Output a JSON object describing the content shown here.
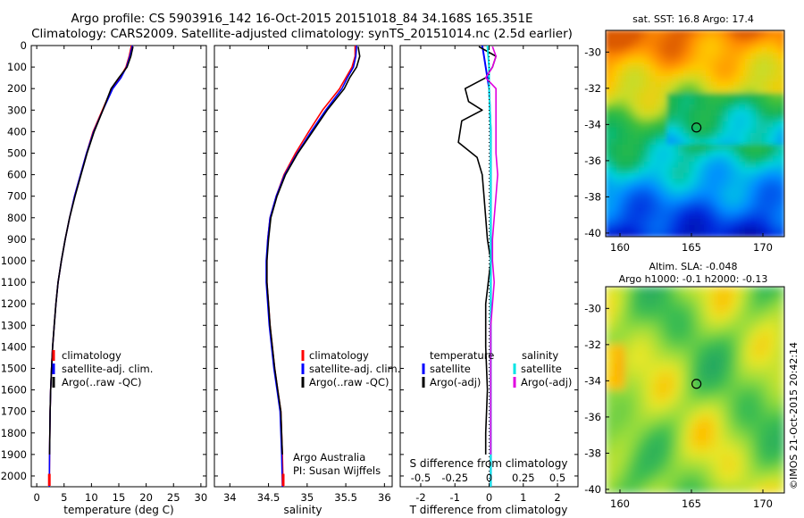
{
  "title_line1": "Argo profile: CS 5903916_142 16-Oct-2015 20151018_84 34.168S 165.351E",
  "title_line2": "Climatology: CARS2009. Satellite-adjusted climatology: synTS_20151014.nc (2.5d earlier)",
  "colors": {
    "climatology": "#ff0000",
    "satellite_adj": "#0000ff",
    "argo": "#000000",
    "argo_adj_salinity": "#e000e0",
    "satellite_salinity": "#00e5e5"
  },
  "chart_data": [
    {
      "type": "line",
      "name": "temperature-profile",
      "xlabel": "temperature (deg C)",
      "ylabel": "",
      "xlim": [
        -1,
        31
      ],
      "ylim": [
        2050,
        0
      ],
      "x_ticks": [
        0,
        5,
        10,
        15,
        20,
        25,
        30
      ],
      "y_ticks": [
        0,
        100,
        200,
        300,
        400,
        500,
        600,
        700,
        800,
        900,
        1000,
        1100,
        1200,
        1300,
        1400,
        1500,
        1600,
        1700,
        1800,
        1900,
        2000
      ],
      "legend": [
        "climatology",
        "satellite-adj. clim.",
        "Argo(..raw -QC)"
      ],
      "series": [
        {
          "name": "climatology",
          "x": [
            17.3,
            16.9,
            16.3,
            15.2,
            13.7,
            12.0,
            10.3,
            9.1,
            8.0,
            6.9,
            6.0,
            5.2,
            4.5,
            3.9,
            3.5,
            3.2,
            2.9,
            2.7,
            2.55,
            2.45,
            2.35,
            2.3
          ],
          "y": [
            0,
            50,
            100,
            150,
            200,
            300,
            400,
            500,
            600,
            700,
            800,
            900,
            1000,
            1100,
            1200,
            1300,
            1400,
            1500,
            1600,
            1700,
            1900,
            2050
          ]
        },
        {
          "name": "satellite-adj. clim.",
          "x": [
            17.5,
            17.0,
            16.4,
            15.4,
            13.9,
            12.1,
            10.4,
            9.1,
            8.0,
            6.9,
            6.0,
            5.2,
            4.5,
            3.9,
            3.5,
            3.2,
            2.9,
            2.7,
            2.55,
            2.45,
            2.35,
            2.3
          ],
          "y": [
            0,
            50,
            100,
            150,
            200,
            300,
            400,
            500,
            600,
            700,
            800,
            900,
            1000,
            1100,
            1200,
            1300,
            1400,
            1500,
            1600,
            1700,
            1900,
            2050
          ]
        },
        {
          "name": "Argo",
          "x": [
            17.6,
            17.2,
            16.5,
            15.0,
            13.6,
            12.1,
            10.5,
            9.2,
            8.1,
            7.0,
            6.0,
            5.2,
            4.5,
            3.9,
            3.5,
            3.2,
            2.9,
            2.7,
            2.55,
            2.45,
            2.35
          ],
          "y": [
            5,
            50,
            100,
            150,
            200,
            300,
            400,
            500,
            600,
            700,
            800,
            900,
            1000,
            1100,
            1200,
            1300,
            1400,
            1500,
            1600,
            1700,
            1900
          ]
        }
      ]
    },
    {
      "type": "line",
      "name": "salinity-profile",
      "xlabel": "salinity",
      "ylabel": "",
      "xlim": [
        33.8,
        36.1
      ],
      "ylim": [
        2050,
        0
      ],
      "x_ticks": [
        34,
        34.5,
        35,
        35.5,
        36
      ],
      "x_tick_labels": [
        "34",
        "34.5",
        "35",
        "35.5",
        "36"
      ],
      "legend": [
        "climatology",
        "satellite-adj. clim.",
        "Argo(..raw -QC)"
      ],
      "annotation": [
        "Argo Australia",
        "PI: Susan Wijffels"
      ],
      "series": [
        {
          "name": "climatology",
          "x": [
            35.62,
            35.62,
            35.58,
            35.5,
            35.42,
            35.2,
            35.02,
            34.85,
            34.7,
            34.6,
            34.52,
            34.49,
            34.48,
            34.48,
            34.5,
            34.52,
            34.55,
            34.58,
            34.62,
            34.66,
            34.68,
            34.69
          ],
          "y": [
            0,
            50,
            100,
            150,
            200,
            300,
            400,
            500,
            600,
            700,
            800,
            900,
            1000,
            1100,
            1200,
            1300,
            1400,
            1500,
            1600,
            1700,
            1900,
            2050
          ]
        },
        {
          "name": "satellite-adj. clim.",
          "x": [
            35.64,
            35.63,
            35.6,
            35.52,
            35.45,
            35.24,
            35.05,
            34.87,
            34.71,
            34.6,
            34.52,
            34.49,
            34.47,
            34.47,
            34.49,
            34.51,
            34.54,
            34.57,
            34.61,
            34.65,
            34.67,
            34.68
          ],
          "y": [
            0,
            50,
            100,
            150,
            200,
            300,
            400,
            500,
            600,
            700,
            800,
            900,
            1000,
            1100,
            1200,
            1300,
            1400,
            1500,
            1600,
            1700,
            1900,
            2050
          ]
        },
        {
          "name": "Argo",
          "x": [
            35.66,
            35.68,
            35.64,
            35.55,
            35.48,
            35.26,
            35.07,
            34.88,
            34.72,
            34.61,
            34.53,
            34.5,
            34.48,
            34.48,
            34.5,
            34.52,
            34.55,
            34.58,
            34.62,
            34.66,
            34.68
          ],
          "y": [
            5,
            50,
            100,
            150,
            200,
            300,
            400,
            500,
            600,
            700,
            800,
            900,
            1000,
            1100,
            1200,
            1300,
            1400,
            1500,
            1600,
            1700,
            1900
          ]
        }
      ]
    },
    {
      "type": "line",
      "name": "difference-profile",
      "xlabel": "T difference from climatology",
      "xlabel_top": "S difference from climatology",
      "xlim": [
        -2.6,
        2.6
      ],
      "ylim": [
        2050,
        0
      ],
      "t_ticks": [
        -2,
        -1,
        0,
        1,
        2
      ],
      "t_tick_labels": [
        "-2",
        "-1",
        "0",
        "1",
        "2"
      ],
      "s_tick_labels": [
        "-0.5",
        "-0.25",
        "0",
        "0.25",
        "0.5"
      ],
      "s_ticks_on_t_axis": [
        -2,
        -1,
        0,
        1,
        2
      ],
      "legend_temperature_title": "temperature",
      "legend_salinity_title": "salinity",
      "legend_temperature": [
        "satellite",
        "Argo(-adj)"
      ],
      "legend_salinity": [
        "satellite",
        "Argo(-adj)"
      ],
      "series": [
        {
          "name": "temperature satellite",
          "x": [
            -0.2,
            -0.15,
            -0.1,
            0.0,
            0.05,
            0.05,
            0.05,
            0.05,
            0.05,
            0.05,
            0.05
          ],
          "y": [
            0,
            50,
            100,
            200,
            400,
            600,
            800,
            1000,
            1400,
            1800,
            2050
          ]
        },
        {
          "name": "temperature Argo",
          "x": [
            -0.3,
            0.2,
            0.1,
            -0.1,
            -0.7,
            -0.6,
            -0.2,
            -0.8,
            -0.9,
            -0.35,
            -0.2,
            -0.15,
            -0.1,
            -0.05,
            0.05,
            -0.1,
            -0.1,
            -0.05,
            -0.1,
            -0.1
          ],
          "y": [
            5,
            50,
            100,
            150,
            200,
            260,
            300,
            350,
            450,
            520,
            600,
            700,
            800,
            900,
            1000,
            1200,
            1400,
            1600,
            1800,
            1900
          ]
        },
        {
          "name": "salinity satellite",
          "x": [
            -0.05,
            0.0,
            0.0,
            0.05,
            0.05,
            0.05,
            0.05,
            0.05,
            0.05,
            0.05
          ],
          "y": [
            0,
            100,
            200,
            400,
            600,
            800,
            1000,
            1400,
            1800,
            2050
          ]
        },
        {
          "name": "salinity Argo",
          "x": [
            0.1,
            0.2,
            0.1,
            -0.1,
            0.2,
            0.2,
            0.2,
            0.2,
            0.25,
            0.2,
            0.15,
            0.1,
            0.1,
            0.15,
            0.1,
            0.05,
            0.05,
            0.05,
            0.05,
            0.05,
            0.05,
            0.05
          ],
          "y": [
            5,
            50,
            100,
            150,
            200,
            300,
            400,
            500,
            600,
            700,
            800,
            900,
            1000,
            1100,
            1200,
            1300,
            1400,
            1500,
            1600,
            1700,
            1800,
            1900
          ]
        }
      ]
    },
    {
      "type": "heatmap",
      "name": "sst-map",
      "title": "sat. SST: 16.8 Argo: 17.4",
      "xlim": [
        159,
        171.5
      ],
      "ylim": [
        -40.2,
        -28.8
      ],
      "x_ticks": [
        160,
        165,
        170
      ],
      "y_ticks": [
        -30,
        -32,
        -34,
        -36,
        -38,
        -40
      ],
      "marker": {
        "lon": 165.351,
        "lat": -34.168
      }
    },
    {
      "type": "heatmap",
      "name": "sla-map",
      "title_line1": "Altim. SLA: -0.048",
      "title_line2": "Argo h1000: -0.1 h2000: -0.13",
      "xlim": [
        159,
        171.5
      ],
      "ylim": [
        -40.2,
        -28.8
      ],
      "x_ticks": [
        160,
        165,
        170
      ],
      "y_ticks": [
        -30,
        -32,
        -34,
        -36,
        -38,
        -40
      ],
      "marker": {
        "lon": 165.351,
        "lat": -34.168
      }
    }
  ],
  "credit": "©IMOS 21-Oct-2015 20:42:14"
}
